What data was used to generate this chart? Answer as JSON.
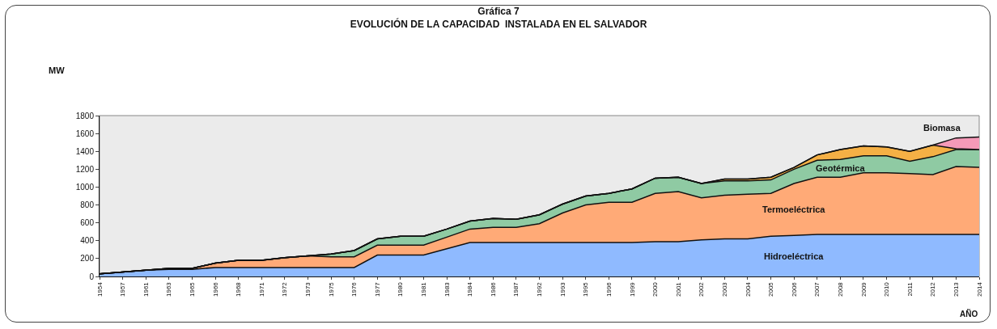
{
  "chart_data": {
    "type": "area",
    "stacked": true,
    "title": "Gráfica 7\nEVOLUCIÓN DE LA CAPACIDAD  INSTALADA EN EL SALVADOR",
    "ylabel": "MW",
    "xlabel": "AÑO",
    "categories": [
      "1954",
      "1957",
      "1961",
      "1963",
      "1965",
      "1966",
      "1968",
      "1971",
      "1972",
      "1973",
      "1975",
      "1976",
      "1977",
      "1980",
      "1981",
      "1983",
      "1984",
      "1986",
      "1987",
      "1992",
      "1993",
      "1995",
      "1996",
      "1999",
      "2000",
      "2001",
      "2002",
      "2003",
      "2004",
      "2005",
      "2006",
      "2007",
      "2008",
      "2009",
      "2010",
      "2011",
      "2012",
      "2013",
      "2014"
    ],
    "ylim": [
      0,
      1800
    ],
    "yticks": [
      0,
      200,
      400,
      600,
      800,
      1000,
      1200,
      1400,
      1600,
      1800
    ],
    "grid": false,
    "legend": false,
    "series": [
      {
        "name": "Hidroeléctrica",
        "color": "#8fbaff",
        "values": [
          30,
          50,
          70,
          80,
          80,
          100,
          100,
          100,
          100,
          100,
          100,
          100,
          240,
          240,
          240,
          310,
          380,
          380,
          380,
          380,
          380,
          380,
          380,
          380,
          390,
          390,
          410,
          420,
          420,
          450,
          460,
          470,
          470,
          470,
          470,
          470,
          470,
          470,
          470
        ]
      },
      {
        "name": "Termoeléctrica",
        "color": "#ffaa77",
        "values": [
          0,
          0,
          0,
          10,
          10,
          50,
          80,
          80,
          110,
          130,
          120,
          120,
          110,
          110,
          110,
          130,
          150,
          170,
          170,
          210,
          330,
          420,
          450,
          450,
          540,
          560,
          470,
          490,
          500,
          480,
          580,
          640,
          640,
          690,
          690,
          680,
          670,
          760,
          750
        ]
      },
      {
        "name": "Geotérmica",
        "color": "#8fcaa3",
        "values": [
          0,
          0,
          0,
          0,
          0,
          0,
          0,
          0,
          0,
          0,
          30,
          70,
          70,
          100,
          100,
          90,
          90,
          100,
          90,
          100,
          100,
          100,
          100,
          150,
          170,
          160,
          160,
          160,
          150,
          150,
          160,
          190,
          200,
          190,
          190,
          140,
          200,
          190,
          200
        ]
      },
      {
        "color": "#f5b045",
        "values": [
          0,
          0,
          0,
          0,
          0,
          0,
          0,
          0,
          0,
          0,
          0,
          0,
          0,
          0,
          0,
          0,
          0,
          0,
          0,
          0,
          0,
          0,
          0,
          0,
          0,
          0,
          0,
          20,
          20,
          30,
          20,
          60,
          110,
          110,
          100,
          110,
          130,
          10,
          0
        ]
      },
      {
        "name": "Biomasa",
        "color": "#f59ab8",
        "values": [
          0,
          0,
          0,
          0,
          0,
          0,
          0,
          0,
          0,
          0,
          0,
          0,
          0,
          0,
          0,
          0,
          0,
          0,
          0,
          0,
          0,
          0,
          0,
          0,
          0,
          0,
          0,
          0,
          0,
          0,
          0,
          0,
          0,
          0,
          0,
          0,
          0,
          120,
          140
        ]
      }
    ]
  }
}
